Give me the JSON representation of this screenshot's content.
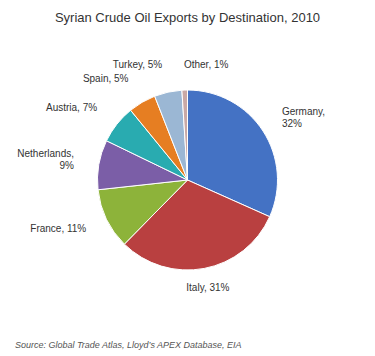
{
  "chart_data": {
    "type": "pie",
    "title": "Syrian Crude Oil Exports by Destination, 2010",
    "values": [
      32,
      31,
      11,
      9,
      7,
      5,
      5,
      1
    ],
    "value_labels": [
      "Germany,\n32%",
      "Italy, 31%",
      "France, 11%",
      "Netherlands,\n9%",
      "Austria, 7%",
      "Spain, 5%",
      "Turkey, 5%",
      "Other, 1%"
    ],
    "colors": [
      "#4472C4",
      "#B94040",
      "#8DB33A",
      "#7B5EA7",
      "#29ABB0",
      "#E67E22",
      "#9BB7D4",
      "#C9A9A6"
    ],
    "annotations": [
      "Source: Global Trade Atlas, Lloyd’s APEX Database, EIA"
    ]
  }
}
